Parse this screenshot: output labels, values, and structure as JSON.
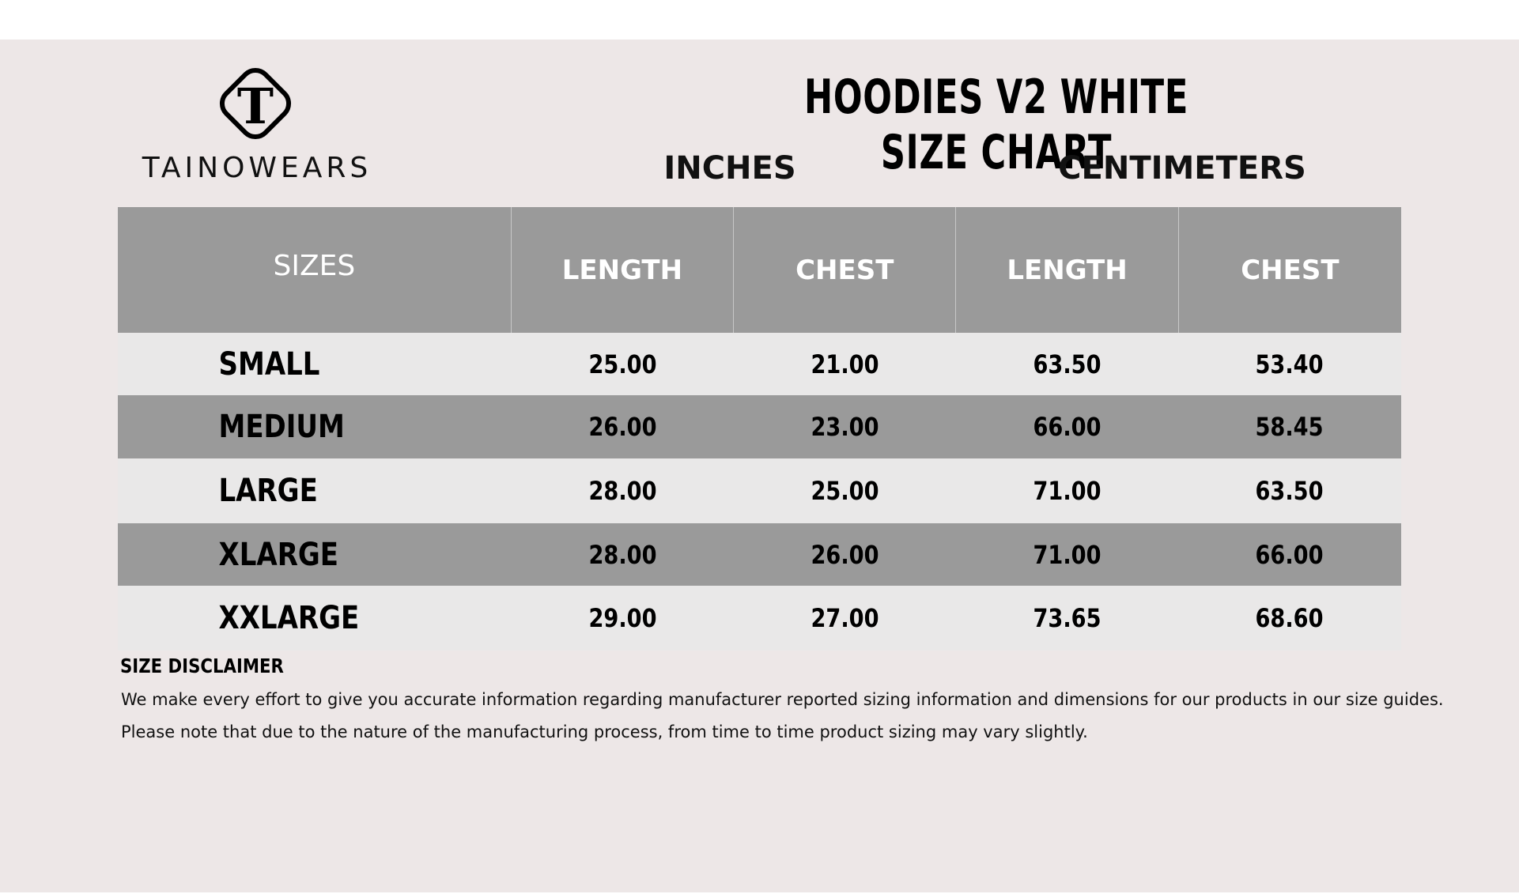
{
  "brand": {
    "name": "TAINOWEARS",
    "logo_letter": "T"
  },
  "title": "HOODIES V2 WHITE SIZE CHART",
  "units": {
    "inches": "INCHES",
    "centimeters": "CENTIMETERS"
  },
  "headers": [
    "SIZES",
    "LENGTH",
    "CHEST",
    "LENGTH",
    "CHEST"
  ],
  "rows": [
    [
      "SMALL",
      "25.00",
      "21.00",
      "63.50",
      "53.40"
    ],
    [
      "MEDIUM",
      "26.00",
      "23.00",
      "66.00",
      "58.45"
    ],
    [
      "LARGE",
      "28.00",
      "25.00",
      "71.00",
      "63.50"
    ],
    [
      "XLARGE",
      "28.00",
      "26.00",
      "71.00",
      "66.00"
    ],
    [
      "XXLARGE",
      "29.00",
      "27.00",
      "73.65",
      "68.60"
    ]
  ],
  "disclaimer": {
    "heading": "SIZE DISCLAIMER",
    "line1": "We make every effort to give you accurate information regarding manufacturer reported sizing information and dimensions for our products in our size guides.",
    "line2": "Please note that due to the nature of the manufacturing process, from time to time product sizing may vary slightly."
  },
  "colors": {
    "background": "#ede7e7",
    "header": "#9a9a9a",
    "row_light": "#e9e8e8",
    "row_dark": "#9a9a9a"
  }
}
